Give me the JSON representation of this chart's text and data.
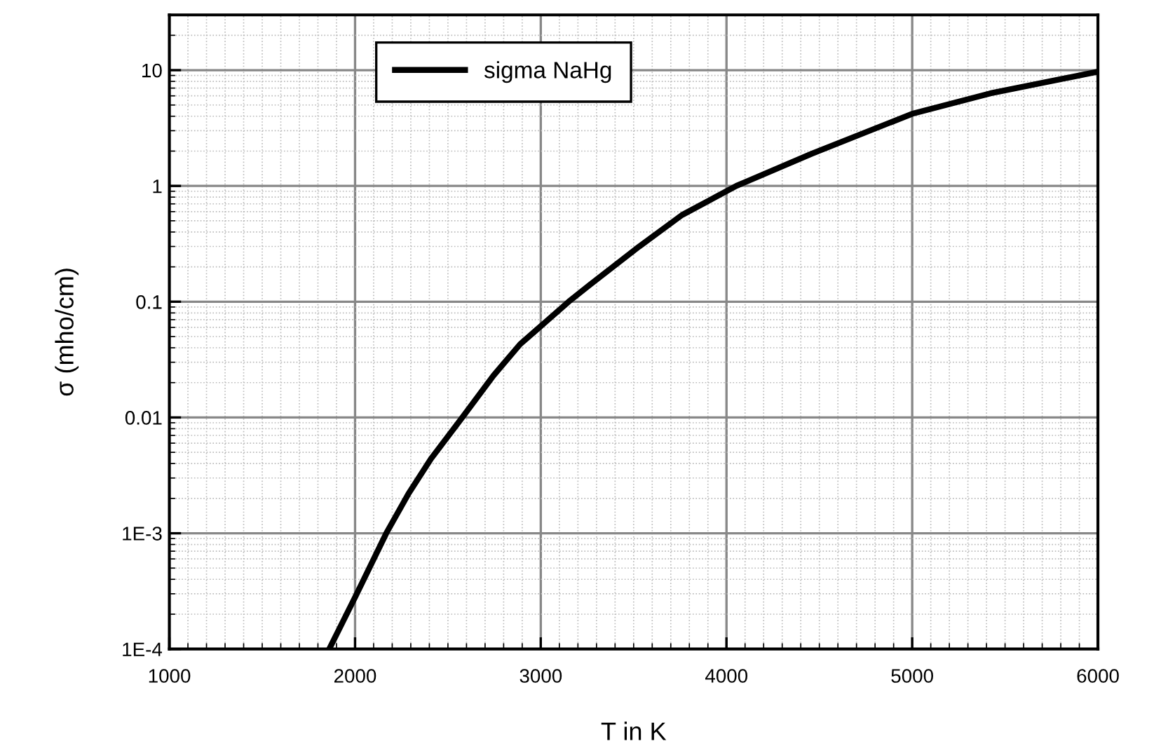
{
  "chart_data": {
    "type": "line",
    "xlabel": "T in K",
    "ylabel": "σ (mho/cm)",
    "series": [
      {
        "name": "sigma NaHg",
        "color": "#000000",
        "x": [
          1861,
          2000,
          2168,
          2288,
          2409,
          2577,
          2745,
          2889,
          3022,
          3150,
          3264,
          3530,
          3760,
          4053,
          4460,
          5000,
          5420,
          6000
        ],
        "values": [
          0.0001,
          0.00028,
          0.001,
          0.0022,
          0.0044,
          0.01,
          0.023,
          0.043,
          0.066,
          0.1,
          0.14,
          0.3,
          0.56,
          1.0,
          1.9,
          4.2,
          6.3,
          9.7
        ]
      }
    ],
    "xlim": [
      1000,
      6000
    ],
    "xticks": [
      1000,
      2000,
      3000,
      4000,
      5000,
      6000
    ],
    "ylim": [
      0.0001,
      30
    ],
    "log": "y",
    "yticks": [
      {
        "value": 0.0001,
        "label": "1E-4"
      },
      {
        "value": 0.001,
        "label": "1E-3"
      },
      0.01,
      0.1,
      1,
      10
    ],
    "grid": true,
    "legend": "top",
    "marker": "none",
    "line_style": "solid"
  }
}
